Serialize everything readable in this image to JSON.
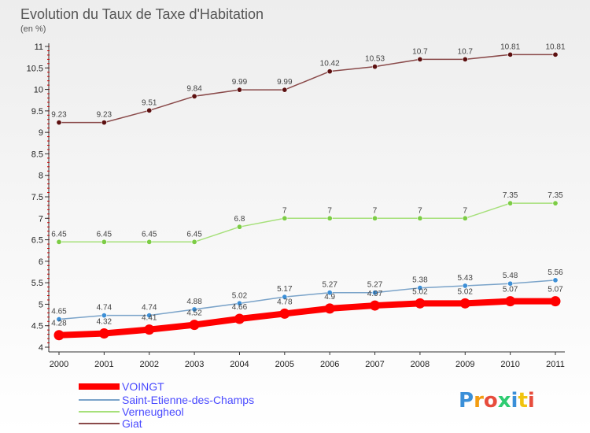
{
  "chart_data": {
    "type": "line",
    "title": "Evolution du Taux de Taxe d'Habitation",
    "subtitle": "(en %)",
    "xlabel": "",
    "ylabel": "",
    "x": [
      "2000",
      "2001",
      "2002",
      "2003",
      "2004",
      "2005",
      "2006",
      "2007",
      "2008",
      "2009",
      "2010",
      "2011"
    ],
    "ylim": [
      4,
      11
    ],
    "yticks": [
      "4",
      "4.5",
      "5",
      "5.5",
      "6",
      "6.5",
      "7",
      "7.5",
      "8",
      "8.5",
      "9",
      "9.5",
      "10",
      "10.5",
      "11"
    ],
    "grid": false,
    "legend_position": "bottom-left",
    "series": [
      {
        "name": "VOINGT",
        "color": "#ff0000",
        "values": [
          4.28,
          4.32,
          4.41,
          4.52,
          4.66,
          4.78,
          4.9,
          4.97,
          5.02,
          5.02,
          5.07,
          5.07
        ],
        "labels": [
          "4.28",
          "4.32",
          "4.41",
          "4.52",
          "4.66",
          "4.78",
          "4.9",
          "4.97",
          "5.02",
          "5.02",
          "5.07",
          "5.07"
        ]
      },
      {
        "name": "Saint-Etienne-des-Champs",
        "color": "#7aa3c9",
        "marker_color": "#3d8fd6",
        "values": [
          4.65,
          4.74,
          4.74,
          4.88,
          5.02,
          5.17,
          5.27,
          5.27,
          5.38,
          5.43,
          5.48,
          5.56
        ],
        "labels": [
          "4.65",
          "4.74",
          "4.74",
          "4.88",
          "5.02",
          "5.17",
          "5.27",
          "5.27",
          "5.38",
          "5.43",
          "5.48",
          "5.56"
        ]
      },
      {
        "name": "Verneugheol",
        "color": "#a6e07a",
        "marker_color": "#7ccc45",
        "values": [
          6.45,
          6.45,
          6.45,
          6.45,
          6.8,
          7,
          7,
          7,
          7,
          7,
          7.35,
          7.35
        ],
        "labels": [
          "6.45",
          "6.45",
          "6.45",
          "6.45",
          "6.8",
          "7",
          "7",
          "7",
          "7",
          "7",
          "7.35",
          "7.35"
        ]
      },
      {
        "name": "Giat",
        "color": "#8a4a4a",
        "marker_color": "#5c1010",
        "values": [
          9.23,
          9.23,
          9.51,
          9.84,
          9.99,
          9.99,
          10.42,
          10.53,
          10.7,
          10.7,
          10.81,
          10.81
        ],
        "labels": [
          "9.23",
          "9.23",
          "9.51",
          "9.84",
          "9.99",
          "9.99",
          "10.42",
          "10.53",
          "10.7",
          "10.7",
          "10.81",
          "10.81"
        ]
      }
    ]
  },
  "logo": {
    "text": "Proxiti"
  }
}
